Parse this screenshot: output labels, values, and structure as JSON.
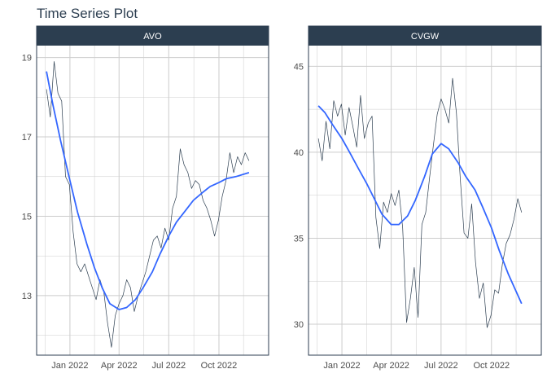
{
  "title": "Time Series Plot",
  "colors": {
    "strip": "#2c3e50",
    "series": "#2c3e50",
    "smooth": "#3366ff",
    "grid": "#cccccc",
    "panel_border": "#2c3e50"
  },
  "chart_data": [
    {
      "type": "line",
      "panel": "AVO",
      "x_ticks": [
        "Jan 2022",
        "Apr 2022",
        "Jul 2022",
        "Oct 2022"
      ],
      "x_tick_dates": [
        "2022-01-01",
        "2022-04-01",
        "2022-07-01",
        "2022-10-01"
      ],
      "x_range": [
        "2021-11-01",
        "2022-12-31"
      ],
      "y_ticks": [
        13,
        15,
        17,
        19
      ],
      "ylim": [
        11.5,
        19.3
      ],
      "grid": true,
      "series": [
        {
          "x": [
            "2021-11-19",
            "2021-11-26",
            "2021-12-03",
            "2021-12-10",
            "2021-12-17",
            "2021-12-24",
            "2021-12-31",
            "2022-01-07",
            "2022-01-14",
            "2022-01-21",
            "2022-01-28",
            "2022-02-04",
            "2022-02-11",
            "2022-02-18",
            "2022-02-25",
            "2022-03-04",
            "2022-03-11",
            "2022-03-18",
            "2022-03-25",
            "2022-04-01",
            "2022-04-08",
            "2022-04-15",
            "2022-04-22",
            "2022-04-29",
            "2022-05-06",
            "2022-05-13",
            "2022-05-20",
            "2022-05-27",
            "2022-06-03",
            "2022-06-10",
            "2022-06-17",
            "2022-06-24",
            "2022-07-01",
            "2022-07-08",
            "2022-07-15",
            "2022-07-22",
            "2022-07-29",
            "2022-08-05",
            "2022-08-12",
            "2022-08-19",
            "2022-08-26",
            "2022-09-02",
            "2022-09-09",
            "2022-09-16",
            "2022-09-23",
            "2022-09-30",
            "2022-10-07",
            "2022-10-14",
            "2022-10-21",
            "2022-10-28",
            "2022-11-04",
            "2022-11-11",
            "2022-11-18",
            "2022-11-25"
          ],
          "values": [
            18.2,
            17.5,
            18.9,
            18.1,
            17.9,
            16.0,
            15.8,
            14.6,
            13.8,
            13.6,
            13.8,
            13.5,
            13.2,
            12.9,
            13.4,
            13.1,
            12.3,
            11.7,
            12.5,
            12.8,
            13.0,
            13.4,
            13.2,
            12.6,
            13.0,
            13.3,
            13.6,
            14.0,
            14.4,
            14.5,
            14.2,
            14.7,
            14.4,
            15.2,
            15.5,
            16.7,
            16.3,
            16.1,
            15.7,
            15.9,
            15.8,
            15.4,
            15.2,
            14.9,
            14.5,
            14.9,
            15.5,
            15.9,
            16.6,
            16.1,
            16.5,
            16.3,
            16.6,
            16.4
          ]
        },
        {
          "name": "",
          "smooth": true,
          "x": [
            "2021-11-19",
            "2021-12-01",
            "2021-12-15",
            "2022-01-01",
            "2022-01-15",
            "2022-02-01",
            "2022-02-15",
            "2022-03-01",
            "2022-03-15",
            "2022-04-01",
            "2022-04-15",
            "2022-05-01",
            "2022-05-15",
            "2022-06-01",
            "2022-06-15",
            "2022-07-01",
            "2022-07-15",
            "2022-08-01",
            "2022-08-15",
            "2022-09-01",
            "2022-09-15",
            "2022-10-01",
            "2022-10-15",
            "2022-11-01",
            "2022-11-25"
          ],
          "values": [
            18.65,
            17.8,
            16.9,
            15.9,
            15.1,
            14.3,
            13.7,
            13.2,
            12.8,
            12.65,
            12.7,
            12.9,
            13.2,
            13.6,
            14.05,
            14.5,
            14.85,
            15.15,
            15.4,
            15.6,
            15.75,
            15.85,
            15.95,
            16.0,
            16.1
          ]
        }
      ]
    },
    {
      "type": "line",
      "panel": "CVGW",
      "x_ticks": [
        "Jan 2022",
        "Apr 2022",
        "Jul 2022",
        "Oct 2022"
      ],
      "x_tick_dates": [
        "2022-01-01",
        "2022-04-01",
        "2022-07-01",
        "2022-10-01"
      ],
      "x_range": [
        "2021-11-01",
        "2022-12-31"
      ],
      "y_ticks": [
        30,
        35,
        40,
        45
      ],
      "ylim": [
        28.2,
        46.2
      ],
      "grid": true,
      "series": [
        {
          "x": [
            "2021-11-19",
            "2021-11-26",
            "2021-12-03",
            "2021-12-10",
            "2021-12-17",
            "2021-12-24",
            "2021-12-31",
            "2022-01-07",
            "2022-01-14",
            "2022-01-21",
            "2022-01-28",
            "2022-02-04",
            "2022-02-11",
            "2022-02-18",
            "2022-02-25",
            "2022-03-04",
            "2022-03-11",
            "2022-03-18",
            "2022-03-25",
            "2022-04-01",
            "2022-04-08",
            "2022-04-15",
            "2022-04-22",
            "2022-04-29",
            "2022-05-06",
            "2022-05-13",
            "2022-05-20",
            "2022-05-27",
            "2022-06-03",
            "2022-06-10",
            "2022-06-17",
            "2022-06-24",
            "2022-07-01",
            "2022-07-08",
            "2022-07-15",
            "2022-07-22",
            "2022-07-29",
            "2022-08-05",
            "2022-08-12",
            "2022-08-19",
            "2022-08-26",
            "2022-09-02",
            "2022-09-09",
            "2022-09-16",
            "2022-09-23",
            "2022-09-30",
            "2022-10-07",
            "2022-10-14",
            "2022-10-21",
            "2022-10-28",
            "2022-11-04",
            "2022-11-11",
            "2022-11-18",
            "2022-11-25"
          ],
          "values": [
            40.8,
            39.5,
            41.8,
            40.2,
            43.0,
            42.1,
            42.8,
            41.0,
            42.6,
            41.5,
            40.3,
            43.3,
            40.8,
            41.7,
            42.1,
            36.2,
            34.4,
            37.1,
            36.5,
            37.6,
            36.9,
            37.8,
            35.6,
            30.1,
            31.5,
            33.3,
            30.4,
            35.8,
            36.5,
            38.5,
            40.4,
            42.2,
            43.1,
            42.5,
            41.7,
            44.3,
            42.3,
            38.5,
            35.3,
            35.0,
            37.0,
            33.6,
            31.5,
            32.4,
            29.8,
            30.5,
            32.0,
            31.8,
            33.5,
            34.7,
            35.2,
            36.1,
            37.3,
            36.5
          ]
        },
        {
          "name": "",
          "smooth": true,
          "x": [
            "2021-11-19",
            "2021-12-01",
            "2021-12-15",
            "2022-01-01",
            "2022-01-15",
            "2022-02-01",
            "2022-02-15",
            "2022-03-01",
            "2022-03-15",
            "2022-04-01",
            "2022-04-15",
            "2022-05-01",
            "2022-05-15",
            "2022-06-01",
            "2022-06-15",
            "2022-07-01",
            "2022-07-15",
            "2022-08-01",
            "2022-08-15",
            "2022-09-01",
            "2022-09-15",
            "2022-10-01",
            "2022-10-15",
            "2022-11-01",
            "2022-11-25"
          ],
          "values": [
            42.7,
            42.3,
            41.6,
            40.8,
            40.0,
            39.0,
            38.2,
            37.3,
            36.4,
            35.8,
            35.8,
            36.3,
            37.2,
            38.6,
            39.9,
            40.5,
            40.2,
            39.4,
            38.6,
            37.8,
            36.8,
            35.6,
            34.3,
            32.9,
            31.2
          ]
        }
      ]
    }
  ]
}
